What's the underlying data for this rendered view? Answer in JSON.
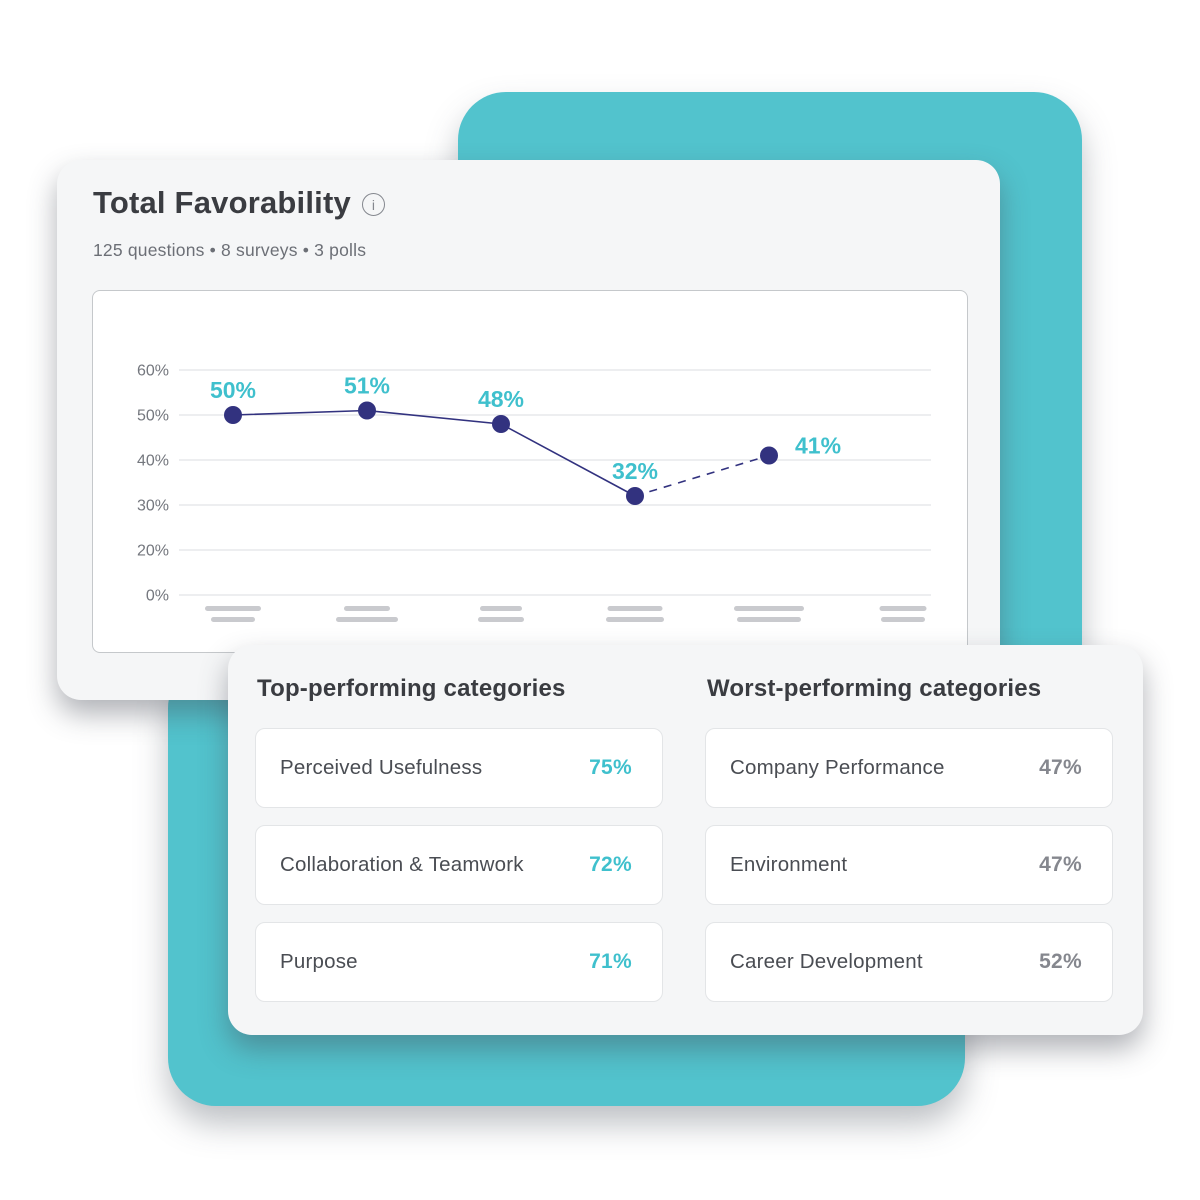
{
  "colors": {
    "teal_shape": "#52C3CD",
    "card_bg": "#F5F6F7",
    "accent_teal": "#3FC0CD",
    "navy": "#32327F",
    "gridline": "#E2E4E7",
    "axis_label": "#74777E",
    "skeleton_bar": "#C9CACE",
    "gray_value": "#85878E"
  },
  "favorability_card": {
    "title": "Total Favorability",
    "info_icon_glyph": "i",
    "subtitle": "125 questions • 8 surveys • 3 polls",
    "chart_data": {
      "type": "line",
      "title": "Total Favorability",
      "x_slot_count": 6,
      "x_tick_labels": [
        "",
        "",
        "",
        "",
        "",
        ""
      ],
      "x_tick_style": "skeleton-placeholder-bars",
      "series": [
        {
          "name": "Total favorability",
          "values": [
            50,
            51,
            48,
            32,
            41
          ]
        }
      ],
      "point_labels": [
        "50%",
        "51%",
        "48%",
        "32%",
        "41%"
      ],
      "y_tick_labels": [
        "60%",
        "50%",
        "40%",
        "30%",
        "20%",
        "0%"
      ],
      "ylim": [
        0,
        60
      ],
      "grid": true,
      "legend": false,
      "dashed_last_segment": true
    }
  },
  "categories_card": {
    "top": {
      "heading": "Top-performing categories",
      "items": [
        {
          "label": "Perceived Usefulness",
          "value": "75%"
        },
        {
          "label": "Collaboration & Teamwork",
          "value": "72%"
        },
        {
          "label": "Purpose",
          "value": "71%"
        }
      ]
    },
    "worst": {
      "heading": "Worst-performing categories",
      "items": [
        {
          "label": "Company Performance",
          "value": "47%"
        },
        {
          "label": "Environment",
          "value": "47%"
        },
        {
          "label": "Career Development",
          "value": "52%"
        }
      ]
    }
  }
}
